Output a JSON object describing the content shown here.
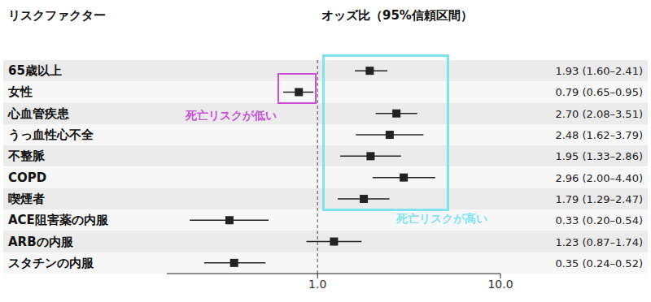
{
  "chart_data": {
    "type": "forest",
    "orientation": "horizontal",
    "log": "x",
    "grid": false,
    "headers": [
      "リスクファクター",
      "オッズ比（95%信頼区間）"
    ],
    "categories": [
      "65歳以上",
      "女性",
      "心血管疾患",
      "うっ血性心不全",
      "不整脈",
      "COPD",
      "喫煙者",
      "ACE阻害薬の内服",
      "ARBの内服",
      "スタチンの内服"
    ],
    "values": [
      1.93,
      0.79,
      2.7,
      2.48,
      1.95,
      2.96,
      1.79,
      0.33,
      1.23,
      0.35
    ],
    "ci_low": [
      1.6,
      0.65,
      2.08,
      1.62,
      1.33,
      2.0,
      1.29,
      0.2,
      0.87,
      0.24
    ],
    "ci_high": [
      2.41,
      0.95,
      3.51,
      3.79,
      2.86,
      4.4,
      2.47,
      0.54,
      1.74,
      0.52
    ],
    "value_labels": [
      "1.93 (1.60–2.41)",
      "0.79 (0.65–0.95)",
      "2.70 (2.08–3.51)",
      "2.48 (1.62–3.79)",
      "1.95 (1.33–2.86)",
      "2.96 (2.00–4.40)",
      "1.79 (1.29–2.47)",
      "0.33 (0.20–0.54)",
      "1.23 (0.87–1.74)",
      "0.35 (0.24–0.52)"
    ],
    "color": "#222222",
    "marker": "square",
    "xlim": [
      0.15,
      10
    ],
    "xticks": [
      {
        "value": 1,
        "label": "1.0"
      },
      {
        "value": 10,
        "label": "10.0"
      }
    ],
    "reference_line": 1,
    "annotations": [
      {
        "text": "死亡リスクが低い",
        "color": "#c94fd6"
      },
      {
        "text": "死亡リスクが高い",
        "color": "#7fe3ee"
      }
    ]
  }
}
